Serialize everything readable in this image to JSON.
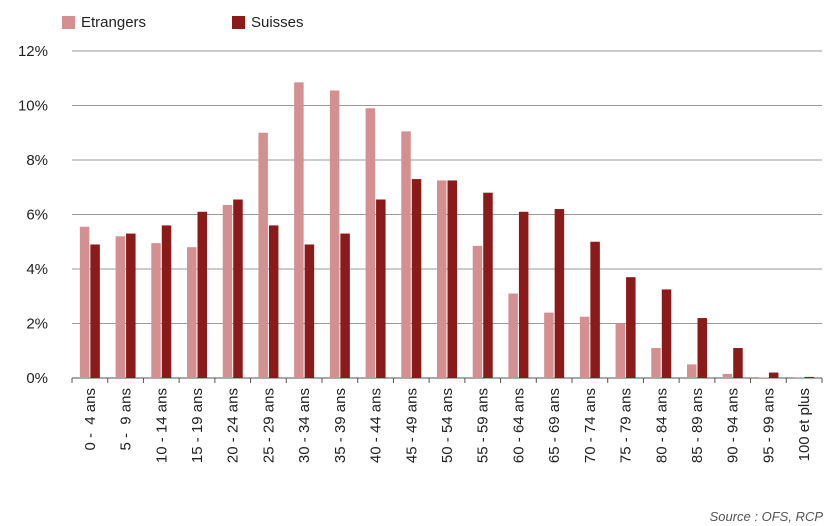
{
  "chart_data": {
    "type": "bar",
    "categories": [
      "0 -  4 ans",
      "5 -  9 ans",
      "10 - 14 ans",
      "15 - 19 ans",
      "20 - 24 ans",
      "25 - 29 ans",
      "30 - 34 ans",
      "35 - 39 ans",
      "40 - 44 ans",
      "45 - 49 ans",
      "50 - 54 ans",
      "55 - 59 ans",
      "60 - 64 ans",
      "65 - 69 ans",
      "70 - 74 ans",
      "75 - 79 ans",
      "80 - 84 ans",
      "85 - 89 ans",
      "90 - 94 ans",
      "95 - 99 ans",
      "100 et plus"
    ],
    "series": [
      {
        "name": "Etrangers",
        "color": "#d49090",
        "values": [
          5.55,
          5.2,
          4.95,
          4.8,
          6.35,
          9.0,
          10.85,
          10.55,
          9.9,
          9.05,
          7.25,
          4.85,
          3.1,
          2.4,
          2.25,
          2.0,
          1.1,
          0.5,
          0.15,
          0.02,
          0.01
        ]
      },
      {
        "name": "Suisses",
        "color": "#8b1a1a",
        "values": [
          4.9,
          5.3,
          5.6,
          6.1,
          6.55,
          5.6,
          4.9,
          5.3,
          6.55,
          7.3,
          7.25,
          6.8,
          6.1,
          6.2,
          5.0,
          3.7,
          3.25,
          2.2,
          1.1,
          0.2,
          0.04
        ]
      }
    ],
    "ylim": [
      0,
      12
    ],
    "yticks": [
      "0%",
      "2%",
      "4%",
      "6%",
      "8%",
      "10%",
      "12%"
    ],
    "ytick_values": [
      0,
      2,
      4,
      6,
      8,
      10,
      12
    ],
    "grid": true,
    "legend_position": "top-left",
    "source": "Source : OFS, RCP"
  }
}
